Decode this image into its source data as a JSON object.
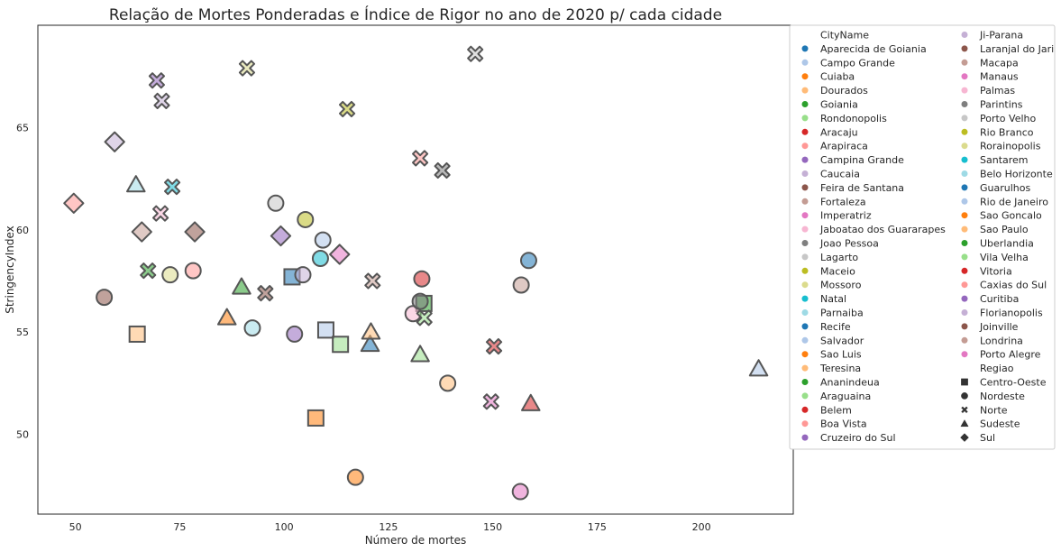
{
  "chart_data": {
    "type": "scatter",
    "title": "Relação de Mortes Ponderadas e Índice de Rigor no ano de 2020 p/ cada cidade",
    "xlabel": "Número de mortes",
    "ylabel": "StringencyIndex",
    "xlim": [
      41,
      222
    ],
    "ylim": [
      46.1,
      70.0
    ],
    "xticks": [
      50,
      75,
      100,
      125,
      150,
      175,
      200
    ],
    "yticks": [
      50,
      55,
      60,
      65
    ],
    "grid": false,
    "legend_position": "outside-right",
    "legend_hue_title": "CityName",
    "legend_style_title": "Regiao",
    "series": [
      {
        "name": "Aparecida de Goiania",
        "color": "#1f77b4",
        "marker": "square",
        "x": 101.9,
        "y": 57.7
      },
      {
        "name": "Campo Grande",
        "color": "#aec7e8",
        "marker": "square",
        "x": 110.0,
        "y": 55.1
      },
      {
        "name": "Cuiaba",
        "color": "#ff7f0e",
        "marker": "square",
        "x": 107.6,
        "y": 50.8
      },
      {
        "name": "Dourados",
        "color": "#ffbb78",
        "marker": "square",
        "x": 64.8,
        "y": 54.9
      },
      {
        "name": "Goiania",
        "color": "#2ca02c",
        "marker": "square",
        "x": 133.5,
        "y": 56.4
      },
      {
        "name": "Rondonopolis",
        "color": "#98df8a",
        "marker": "square",
        "x": 113.5,
        "y": 54.4
      },
      {
        "name": "Aracaju",
        "color": "#d62728",
        "marker": "circle",
        "x": 133.0,
        "y": 57.6
      },
      {
        "name": "Arapiraca",
        "color": "#ff9896",
        "marker": "circle",
        "x": 78.2,
        "y": 58.0
      },
      {
        "name": "Campina Grande",
        "color": "#9467bd",
        "marker": "circle",
        "x": 102.5,
        "y": 54.9
      },
      {
        "name": "Caucaia",
        "color": "#c5b0d5",
        "marker": "circle",
        "x": 104.5,
        "y": 57.8
      },
      {
        "name": "Feira de Santana",
        "color": "#8c564b",
        "marker": "circle",
        "x": 56.9,
        "y": 56.7
      },
      {
        "name": "Fortaleza",
        "color": "#c49c94",
        "marker": "circle",
        "x": 156.8,
        "y": 57.3
      },
      {
        "name": "Imperatriz",
        "color": "#e377c2",
        "marker": "circle",
        "x": 156.6,
        "y": 47.2
      },
      {
        "name": "Jaboatao dos Guararapes",
        "color": "#f7b6d2",
        "marker": "circle",
        "x": 130.9,
        "y": 55.9
      },
      {
        "name": "Joao Pessoa",
        "color": "#7f7f7f",
        "marker": "circle",
        "x": 132.6,
        "y": 56.5
      },
      {
        "name": "Lagarto",
        "color": "#c7c7c7",
        "marker": "circle",
        "x": 98.0,
        "y": 61.3
      },
      {
        "name": "Maceio",
        "color": "#bcbd22",
        "marker": "circle",
        "x": 105.1,
        "y": 60.5
      },
      {
        "name": "Mossoro",
        "color": "#dbdb8d",
        "marker": "circle",
        "x": 72.7,
        "y": 57.8
      },
      {
        "name": "Natal",
        "color": "#17becf",
        "marker": "circle",
        "x": 108.7,
        "y": 58.6
      },
      {
        "name": "Parnaiba",
        "color": "#9edae5",
        "marker": "circle",
        "x": 92.4,
        "y": 55.2
      },
      {
        "name": "Recife",
        "color": "#1f77b4",
        "marker": "circle",
        "x": 158.6,
        "y": 58.5
      },
      {
        "name": "Salvador",
        "color": "#aec7e8",
        "marker": "circle",
        "x": 109.3,
        "y": 59.5
      },
      {
        "name": "Sao Luis",
        "color": "#ff7f0e",
        "marker": "circle",
        "x": 117.1,
        "y": 47.9
      },
      {
        "name": "Teresina",
        "color": "#ffbb78",
        "marker": "circle",
        "x": 139.2,
        "y": 52.5
      },
      {
        "name": "Ananindeua",
        "color": "#2ca02c",
        "marker": "x",
        "x": 67.4,
        "y": 58.0
      },
      {
        "name": "Araguaina",
        "color": "#98df8a",
        "marker": "x",
        "x": 133.6,
        "y": 55.7
      },
      {
        "name": "Belem",
        "color": "#d62728",
        "marker": "x",
        "x": 150.3,
        "y": 54.3
      },
      {
        "name": "Boa Vista",
        "color": "#ff9896",
        "marker": "x",
        "x": 132.6,
        "y": 63.5
      },
      {
        "name": "Cruzeiro do Sul",
        "color": "#9467bd",
        "marker": "x",
        "x": 69.5,
        "y": 67.3
      },
      {
        "name": "Ji-Parana",
        "color": "#c5b0d5",
        "marker": "x",
        "x": 70.7,
        "y": 66.3
      },
      {
        "name": "Laranjal do Jari",
        "color": "#8c564b",
        "marker": "x",
        "x": 95.5,
        "y": 56.9
      },
      {
        "name": "Macapa",
        "color": "#c49c94",
        "marker": "x",
        "x": 121.2,
        "y": 57.5
      },
      {
        "name": "Manaus",
        "color": "#e377c2",
        "marker": "x",
        "x": 149.6,
        "y": 51.6
      },
      {
        "name": "Palmas",
        "color": "#f7b6d2",
        "marker": "x",
        "x": 70.4,
        "y": 60.8
      },
      {
        "name": "Parintins",
        "color": "#7f7f7f",
        "marker": "x",
        "x": 137.9,
        "y": 62.9
      },
      {
        "name": "Porto Velho",
        "color": "#c7c7c7",
        "marker": "x",
        "x": 145.8,
        "y": 68.6
      },
      {
        "name": "Rio Branco",
        "color": "#bcbd22",
        "marker": "x",
        "x": 115.1,
        "y": 65.9
      },
      {
        "name": "Rorainopolis",
        "color": "#dbdb8d",
        "marker": "x",
        "x": 91.1,
        "y": 67.9
      },
      {
        "name": "Santarem",
        "color": "#17becf",
        "marker": "x",
        "x": 73.2,
        "y": 62.1
      },
      {
        "name": "Belo Horizonte",
        "color": "#9edae5",
        "marker": "triangle",
        "x": 64.5,
        "y": 62.2
      },
      {
        "name": "Guarulhos",
        "color": "#1f77b4",
        "marker": "triangle",
        "x": 120.6,
        "y": 54.4
      },
      {
        "name": "Rio de Janeiro",
        "color": "#aec7e8",
        "marker": "triangle",
        "x": 213.7,
        "y": 53.2
      },
      {
        "name": "Sao Goncalo",
        "color": "#ff7f0e",
        "marker": "triangle",
        "x": 86.3,
        "y": 55.7
      },
      {
        "name": "Sao Paulo",
        "color": "#ffbb78",
        "marker": "triangle",
        "x": 120.8,
        "y": 55.0
      },
      {
        "name": "Uberlandia",
        "color": "#2ca02c",
        "marker": "triangle",
        "x": 89.8,
        "y": 57.2
      },
      {
        "name": "Vila Velha",
        "color": "#98df8a",
        "marker": "triangle",
        "x": 132.6,
        "y": 53.9
      },
      {
        "name": "Vitoria",
        "color": "#d62728",
        "marker": "triangle",
        "x": 159.1,
        "y": 51.5
      },
      {
        "name": "Caxias do Sul",
        "color": "#ff9896",
        "marker": "diamond",
        "x": 49.6,
        "y": 61.3
      },
      {
        "name": "Curitiba",
        "color": "#9467bd",
        "marker": "diamond",
        "x": 99.2,
        "y": 59.7
      },
      {
        "name": "Florianopolis",
        "color": "#c5b0d5",
        "marker": "diamond",
        "x": 59.4,
        "y": 64.3
      },
      {
        "name": "Joinville",
        "color": "#8c564b",
        "marker": "diamond",
        "x": 78.6,
        "y": 59.9
      },
      {
        "name": "Londrina",
        "color": "#c49c94",
        "marker": "diamond",
        "x": 65.9,
        "y": 59.9
      },
      {
        "name": "Porto Alegre",
        "color": "#e377c2",
        "marker": "diamond",
        "x": 113.3,
        "y": 58.8
      }
    ],
    "regions": [
      {
        "name": "Centro-Oeste",
        "marker": "square"
      },
      {
        "name": "Nordeste",
        "marker": "circle"
      },
      {
        "name": "Norte",
        "marker": "x"
      },
      {
        "name": "Sudeste",
        "marker": "triangle"
      },
      {
        "name": "Sul",
        "marker": "diamond"
      }
    ]
  }
}
